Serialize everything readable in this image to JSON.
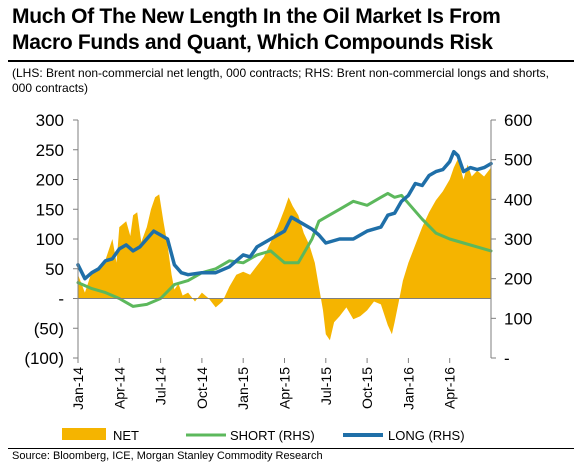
{
  "header": {
    "title_line1": "Much Of The New Length In the Oil Market Is From",
    "title_line2": "Macro Funds and Quant, Which Compounds Risk",
    "subtitle": "(LHS: Brent non-commercial net length, 000 contracts; RHS: Brent non-commercial longs and shorts, 000 contracts)"
  },
  "footer": {
    "source": "Source: Bloomberg, ICE, Morgan Stanley Commodity Research"
  },
  "colors": {
    "net": "#F5B400",
    "short": "#5CB85C",
    "long": "#1F6FA8",
    "axis": "#7f7f7f"
  },
  "chart_data": {
    "type": "area",
    "title": "Much Of The New Length In the Oil Market Is From Macro Funds and Quant, Which Compounds Risk",
    "x_axis": {
      "tick_labels": [
        "Jan-14",
        "Apr-14",
        "Jul-14",
        "Oct-14",
        "Jan-15",
        "Apr-15",
        "Jul-15",
        "Oct-15",
        "Jan-16",
        "Apr-16"
      ],
      "tick_positions_months": [
        0,
        3,
        6,
        9,
        12,
        15,
        18,
        21,
        24,
        27
      ],
      "range_months": [
        0,
        30
      ]
    },
    "y_left": {
      "ylim": [
        -100,
        300
      ],
      "ticks": [
        300,
        250,
        200,
        150,
        100,
        50,
        0,
        -50,
        -100
      ],
      "tick_labels": [
        "300",
        "250",
        "200",
        "150",
        "100",
        "50",
        "-",
        "(50)",
        "(100)"
      ]
    },
    "y_right": {
      "ylim": [
        0,
        600
      ],
      "ticks": [
        600,
        500,
        400,
        300,
        200,
        100,
        0
      ],
      "tick_labels": [
        "600",
        "500",
        "400",
        "300",
        "200",
        "100",
        "-"
      ]
    },
    "legend": [
      "NET",
      "SHORT (RHS)",
      "LONG (RHS)"
    ],
    "legend_position": "bottom",
    "series": [
      {
        "name": "NET",
        "axis": "left",
        "render": "area",
        "points": [
          [
            0,
            40
          ],
          [
            0.5,
            10
          ],
          [
            1,
            45
          ],
          [
            1.5,
            50
          ],
          [
            2,
            65
          ],
          [
            2.5,
            100
          ],
          [
            2.8,
            60
          ],
          [
            3,
            120
          ],
          [
            3.5,
            130
          ],
          [
            3.8,
            105
          ],
          [
            4,
            140
          ],
          [
            4.3,
            145
          ],
          [
            4.6,
            95
          ],
          [
            5,
            120
          ],
          [
            5.3,
            150
          ],
          [
            5.6,
            170
          ],
          [
            5.9,
            175
          ],
          [
            6.2,
            130
          ],
          [
            6.5,
            90
          ],
          [
            6.8,
            40
          ],
          [
            7,
            15
          ],
          [
            7.3,
            25
          ],
          [
            7.6,
            5
          ],
          [
            8,
            10
          ],
          [
            8.5,
            -5
          ],
          [
            9,
            10
          ],
          [
            9.5,
            0
          ],
          [
            10,
            -15
          ],
          [
            10.5,
            -5
          ],
          [
            11,
            20
          ],
          [
            11.5,
            40
          ],
          [
            12,
            45
          ],
          [
            12.5,
            40
          ],
          [
            13,
            55
          ],
          [
            13.5,
            70
          ],
          [
            14,
            95
          ],
          [
            14.5,
            120
          ],
          [
            15,
            150
          ],
          [
            15.3,
            170
          ],
          [
            15.6,
            155
          ],
          [
            16,
            140
          ],
          [
            16.4,
            110
          ],
          [
            16.8,
            90
          ],
          [
            17.2,
            60
          ],
          [
            17.5,
            20
          ],
          [
            17.8,
            -20
          ],
          [
            18,
            -60
          ],
          [
            18.3,
            -70
          ],
          [
            18.6,
            -40
          ],
          [
            19,
            -30
          ],
          [
            19.5,
            -15
          ],
          [
            20,
            -35
          ],
          [
            20.5,
            -30
          ],
          [
            21,
            -20
          ],
          [
            21.5,
            -5
          ],
          [
            22,
            -10
          ],
          [
            22.5,
            -45
          ],
          [
            22.8,
            -60
          ],
          [
            23,
            -40
          ],
          [
            23.3,
            -5
          ],
          [
            23.6,
            30
          ],
          [
            24,
            60
          ],
          [
            24.5,
            90
          ],
          [
            25,
            120
          ],
          [
            25.5,
            145
          ],
          [
            26,
            165
          ],
          [
            26.5,
            180
          ],
          [
            27,
            200
          ],
          [
            27.3,
            220
          ],
          [
            27.6,
            235
          ],
          [
            28,
            200
          ],
          [
            28.3,
            225
          ],
          [
            28.6,
            205
          ],
          [
            29,
            215
          ],
          [
            29.5,
            205
          ],
          [
            30,
            220
          ]
        ]
      },
      {
        "name": "SHORT (RHS)",
        "axis": "right",
        "render": "line",
        "points": [
          [
            0,
            190
          ],
          [
            1,
            175
          ],
          [
            2,
            165
          ],
          [
            3,
            150
          ],
          [
            4,
            130
          ],
          [
            5,
            135
          ],
          [
            6,
            150
          ],
          [
            7,
            185
          ],
          [
            8,
            195
          ],
          [
            9,
            215
          ],
          [
            10,
            225
          ],
          [
            11,
            245
          ],
          [
            12,
            240
          ],
          [
            13,
            260
          ],
          [
            14,
            270
          ],
          [
            15,
            240
          ],
          [
            16,
            240
          ],
          [
            17,
            300
          ],
          [
            17.5,
            345
          ],
          [
            18,
            355
          ],
          [
            19,
            375
          ],
          [
            20,
            395
          ],
          [
            21,
            385
          ],
          [
            22,
            405
          ],
          [
            22.5,
            415
          ],
          [
            23,
            405
          ],
          [
            23.5,
            410
          ],
          [
            24,
            390
          ],
          [
            25,
            350
          ],
          [
            26,
            315
          ],
          [
            27,
            300
          ],
          [
            28,
            290
          ],
          [
            29,
            280
          ],
          [
            29.5,
            275
          ],
          [
            30,
            270
          ]
        ]
      },
      {
        "name": "LONG (RHS)",
        "axis": "right",
        "render": "line",
        "points": [
          [
            0,
            235
          ],
          [
            0.5,
            200
          ],
          [
            1,
            215
          ],
          [
            1.5,
            225
          ],
          [
            2,
            245
          ],
          [
            2.5,
            250
          ],
          [
            3,
            275
          ],
          [
            3.5,
            285
          ],
          [
            4,
            270
          ],
          [
            4.5,
            280
          ],
          [
            5,
            300
          ],
          [
            5.5,
            320
          ],
          [
            6,
            310
          ],
          [
            6.5,
            300
          ],
          [
            7,
            235
          ],
          [
            7.5,
            215
          ],
          [
            8,
            210
          ],
          [
            9,
            215
          ],
          [
            10,
            215
          ],
          [
            11,
            230
          ],
          [
            11.5,
            245
          ],
          [
            12,
            260
          ],
          [
            12.5,
            255
          ],
          [
            13,
            280
          ],
          [
            14,
            300
          ],
          [
            15,
            320
          ],
          [
            15.5,
            355
          ],
          [
            16,
            345
          ],
          [
            17,
            325
          ],
          [
            17.5,
            310
          ],
          [
            18,
            290
          ],
          [
            18.5,
            295
          ],
          [
            19,
            300
          ],
          [
            20,
            300
          ],
          [
            21,
            320
          ],
          [
            22,
            330
          ],
          [
            22.5,
            360
          ],
          [
            23,
            365
          ],
          [
            23.5,
            395
          ],
          [
            24,
            410
          ],
          [
            24.5,
            440
          ],
          [
            25,
            435
          ],
          [
            25.5,
            460
          ],
          [
            26,
            470
          ],
          [
            26.5,
            475
          ],
          [
            27,
            495
          ],
          [
            27.3,
            520
          ],
          [
            27.6,
            510
          ],
          [
            28,
            470
          ],
          [
            28.5,
            480
          ],
          [
            29,
            475
          ],
          [
            29.5,
            480
          ],
          [
            30,
            490
          ]
        ]
      }
    ]
  }
}
